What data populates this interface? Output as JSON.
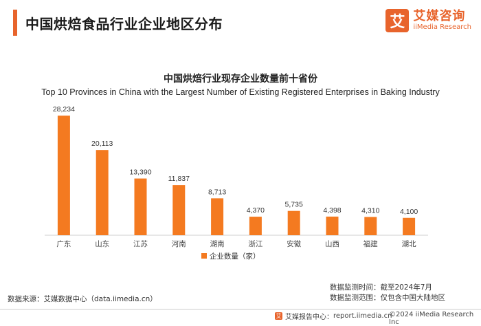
{
  "header": {
    "title": "中国烘焙食品行业企业地区分布",
    "brand_logo_char": "艾",
    "brand_cn": "艾媒咨询",
    "brand_en": "iiMedia Research"
  },
  "chart_data": {
    "type": "bar",
    "title": "中国烘焙行业现存企业数量前十省份",
    "subtitle": "Top 10 Provinces in China with the Largest Number of Existing Registered Enterprises in Baking Industry",
    "categories": [
      "广东",
      "山东",
      "江苏",
      "河南",
      "湖南",
      "浙江",
      "安徽",
      "山西",
      "福建",
      "湖北"
    ],
    "series": [
      {
        "name": "企业数量（家）",
        "values": [
          28234,
          20113,
          13390,
          11837,
          8713,
          4370,
          5735,
          4398,
          4310,
          4100
        ]
      }
    ],
    "value_labels": [
      "28,234",
      "20,113",
      "13,390",
      "11,837",
      "8,713",
      "4,370",
      "5,735",
      "4,398",
      "4,310",
      "4,100"
    ],
    "ylim": [
      0,
      30000
    ],
    "grid": false,
    "legend_position": "bottom-center",
    "bar_color": "#f47a20"
  },
  "meta": {
    "time": "数据监测时间：截至2024年7月",
    "scope": "数据监测范围：仅包含中国大陆地区"
  },
  "source": "数据来源：艾媒数据中心（data.iimedia.cn）",
  "footer": {
    "center_label": "艾媒报告中心：",
    "center_url": "report.iimedia.cn",
    "copyright": "©2024 iiMedia Research Inc"
  }
}
